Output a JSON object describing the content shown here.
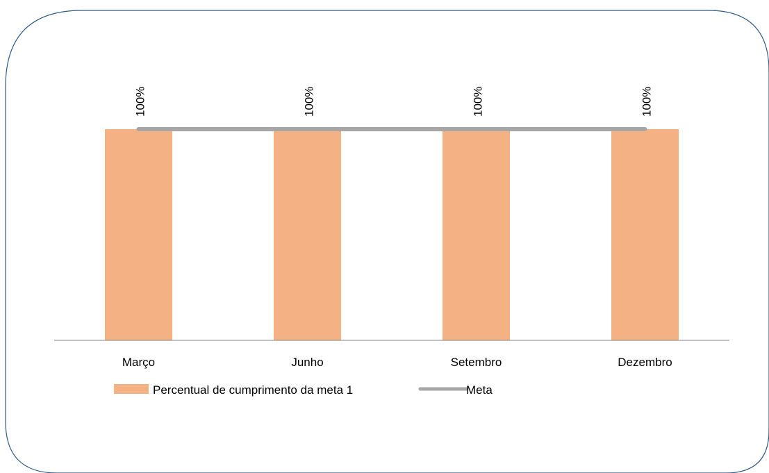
{
  "chart_data": {
    "type": "bar",
    "categories": [
      "Março",
      "Junho",
      "Setembro",
      "Dezembro"
    ],
    "series": [
      {
        "name": "Percentual de cumprimento da meta 1",
        "kind": "bar",
        "values": [
          100,
          100,
          100,
          100
        ],
        "color": "#F4B183"
      },
      {
        "name": "Meta",
        "kind": "line",
        "values": [
          100,
          100,
          100,
          100
        ],
        "color": "#A6A6A6"
      }
    ],
    "data_labels": [
      "100%",
      "100%",
      "100%",
      "100%"
    ],
    "ylim": [
      0,
      100
    ],
    "grid": false,
    "legend_position": "bottom",
    "frame_color": "#2E5A88",
    "axis_color": "#868686"
  }
}
